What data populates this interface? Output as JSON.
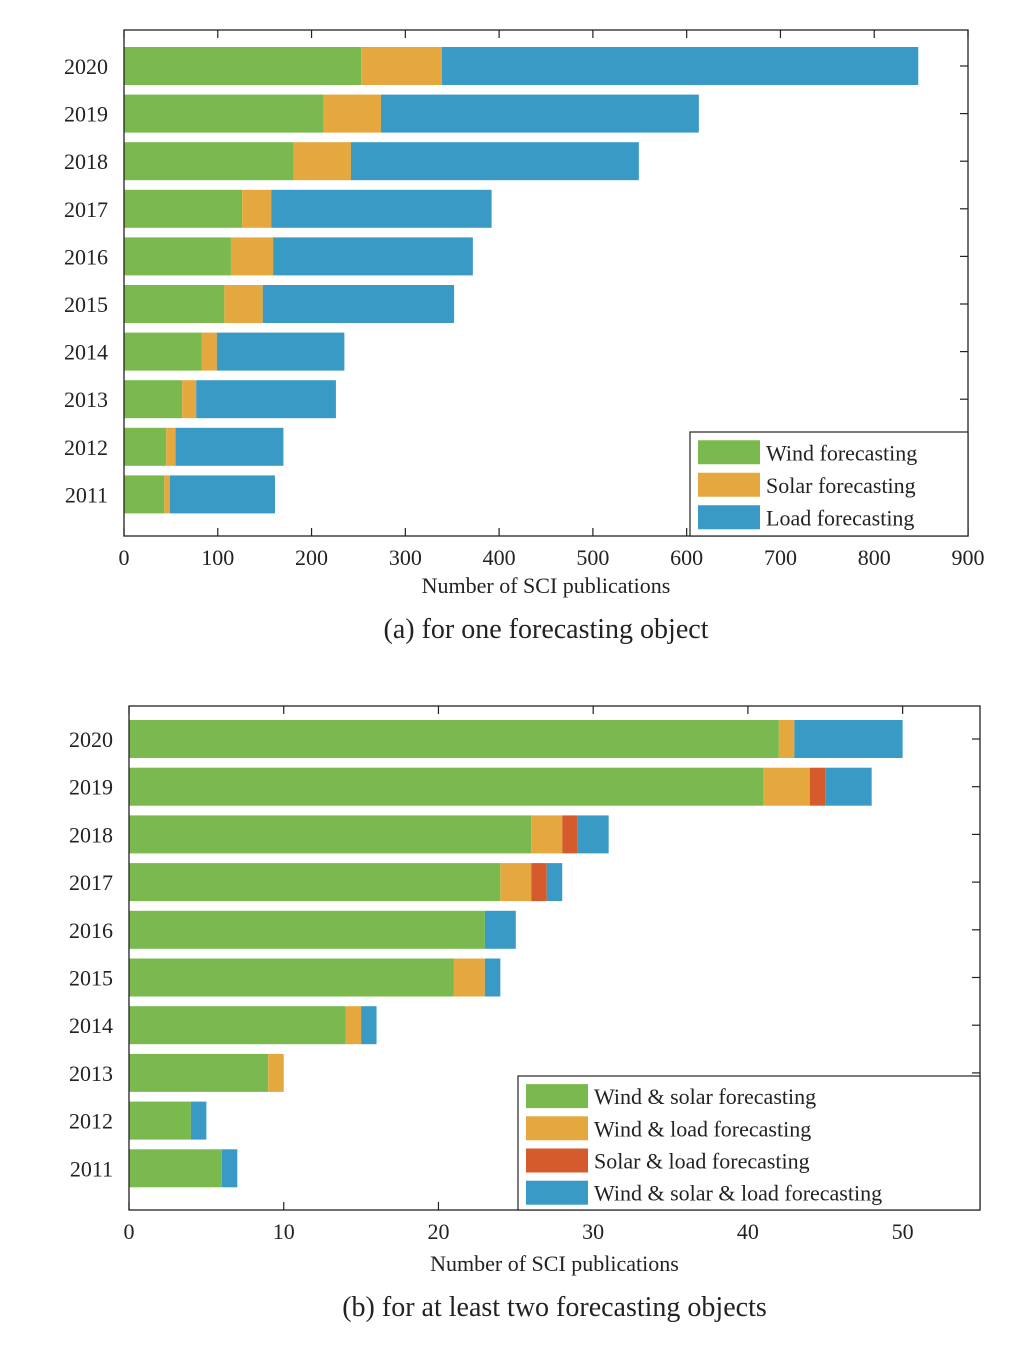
{
  "chart_data": [
    {
      "type": "bar",
      "orientation": "horizontal",
      "stacked": true,
      "title": "(a) for one forecasting object",
      "xlabel": "Number of SCI publications",
      "ylabel": "",
      "xlim": [
        0,
        900
      ],
      "xticks": [
        0,
        100,
        200,
        300,
        400,
        500,
        600,
        700,
        800,
        900
      ],
      "categories": [
        "2020",
        "2019",
        "2018",
        "2017",
        "2016",
        "2015",
        "2014",
        "2013",
        "2012",
        "2011"
      ],
      "series": [
        {
          "name": "Wind forecasting",
          "color": "#7ab94e",
          "values": [
            253,
            213,
            181,
            126,
            114,
            107,
            83,
            62,
            45,
            43
          ]
        },
        {
          "name": "Solar forecasting",
          "color": "#e4a83e",
          "values": [
            86,
            61,
            61,
            31,
            45,
            41,
            16,
            15,
            10,
            6
          ]
        },
        {
          "name": "Load forecasting",
          "color": "#3a9ac6",
          "values": [
            508,
            339,
            307,
            235,
            213,
            204,
            136,
            149,
            115,
            112
          ]
        }
      ],
      "legend_position": "bottom-right",
      "grid": false
    },
    {
      "type": "bar",
      "orientation": "horizontal",
      "stacked": true,
      "title": "(b) for at least two forecasting objects",
      "xlabel": "Number of SCI publications",
      "ylabel": "",
      "xlim": [
        0,
        55
      ],
      "xticks": [
        0,
        10,
        20,
        30,
        40,
        50
      ],
      "categories": [
        "2020",
        "2019",
        "2018",
        "2017",
        "2016",
        "2015",
        "2014",
        "2013",
        "2012",
        "2011"
      ],
      "series": [
        {
          "name": "Wind & solar forecasting",
          "color": "#7ab94e",
          "values": [
            42,
            41,
            26,
            24,
            23,
            21,
            14,
            9,
            4,
            6
          ]
        },
        {
          "name": "Wind & load forecasting",
          "color": "#e4a83e",
          "values": [
            1,
            3,
            2,
            2,
            0,
            2,
            1,
            1,
            0,
            0
          ]
        },
        {
          "name": "Solar & load forecasting",
          "color": "#d55a2c",
          "values": [
            0,
            1,
            1,
            1,
            0,
            0,
            0,
            0,
            0,
            0
          ]
        },
        {
          "name": "Wind & solar & load forecasting",
          "color": "#3a9ac6",
          "values": [
            7,
            3,
            2,
            1,
            2,
            1,
            1,
            0,
            1,
            1
          ]
        }
      ],
      "legend_position": "bottom-right",
      "grid": false
    }
  ]
}
